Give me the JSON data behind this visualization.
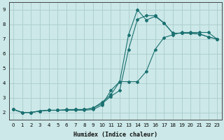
{
  "xlabel": "Humidex (Indice chaleur)",
  "xlim": [
    -0.5,
    23.5
  ],
  "ylim": [
    1.5,
    9.5
  ],
  "xticks": [
    0,
    1,
    2,
    3,
    4,
    5,
    6,
    7,
    8,
    9,
    10,
    11,
    12,
    13,
    14,
    15,
    16,
    17,
    18,
    19,
    20,
    21,
    22,
    23
  ],
  "yticks": [
    2,
    3,
    4,
    5,
    6,
    7,
    8,
    9
  ],
  "bg_color": "#cce8e8",
  "grid_color": "#aacccc",
  "line_color": "#1a7070",
  "curve1_x": [
    0,
    1,
    2,
    3,
    4,
    5,
    6,
    7,
    8,
    9,
    10,
    11,
    12,
    13,
    14,
    15,
    16,
    17,
    18,
    19,
    20,
    21,
    22,
    23
  ],
  "curve1_y": [
    2.2,
    2.0,
    2.0,
    2.1,
    2.15,
    2.15,
    2.15,
    2.15,
    2.15,
    2.2,
    2.5,
    3.5,
    4.1,
    7.3,
    9.0,
    8.3,
    8.55,
    8.1,
    7.4,
    7.4,
    7.4,
    7.35,
    7.15,
    7.0
  ],
  "curve2_x": [
    0,
    1,
    2,
    3,
    4,
    5,
    6,
    7,
    8,
    9,
    10,
    11,
    12,
    13,
    14,
    15,
    16,
    17,
    18,
    19,
    20,
    21,
    22,
    23
  ],
  "curve2_y": [
    2.2,
    2.0,
    2.0,
    2.1,
    2.15,
    2.15,
    2.2,
    2.2,
    2.2,
    2.3,
    2.7,
    3.2,
    4.1,
    4.1,
    4.1,
    4.8,
    6.3,
    7.1,
    7.3,
    7.45,
    7.45,
    7.45,
    7.45,
    7.0
  ],
  "curve3_x": [
    0,
    1,
    2,
    3,
    4,
    5,
    6,
    7,
    8,
    9,
    10,
    11,
    12,
    13,
    14,
    15,
    16,
    17,
    18,
    19,
    20,
    21,
    22,
    23
  ],
  "curve3_y": [
    2.2,
    2.0,
    2.0,
    2.1,
    2.15,
    2.15,
    2.15,
    2.2,
    2.2,
    2.3,
    2.6,
    3.1,
    3.5,
    6.3,
    8.35,
    8.6,
    8.6,
    8.1,
    7.4,
    7.4,
    7.4,
    7.35,
    7.15,
    7.0
  ]
}
